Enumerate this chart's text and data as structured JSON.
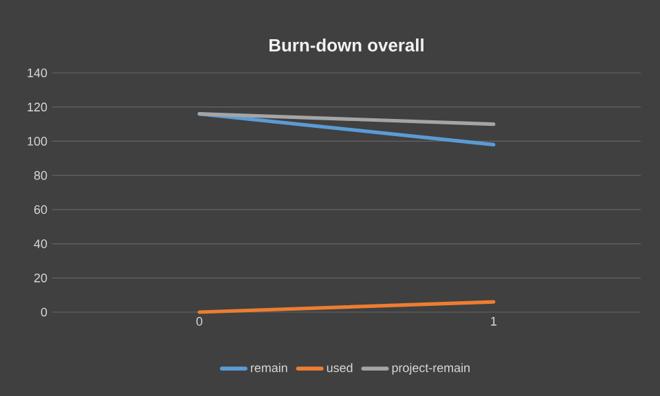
{
  "chart_data": {
    "type": "line",
    "title": "Burn-down  overall",
    "categories": [
      "0",
      "1"
    ],
    "series": [
      {
        "name": "remain",
        "color": "#5b9bd5",
        "values": [
          116,
          98
        ]
      },
      {
        "name": "used",
        "color": "#ed7d31",
        "values": [
          0,
          6
        ]
      },
      {
        "name": "project-remain",
        "color": "#a5a5a5",
        "values": [
          116,
          110
        ]
      }
    ],
    "ylim": [
      0,
      140
    ],
    "yticks": [
      0,
      20,
      40,
      60,
      80,
      100,
      120,
      140
    ],
    "grid": "y",
    "legend": "bottom",
    "marker": "none",
    "line_style": "solid"
  }
}
